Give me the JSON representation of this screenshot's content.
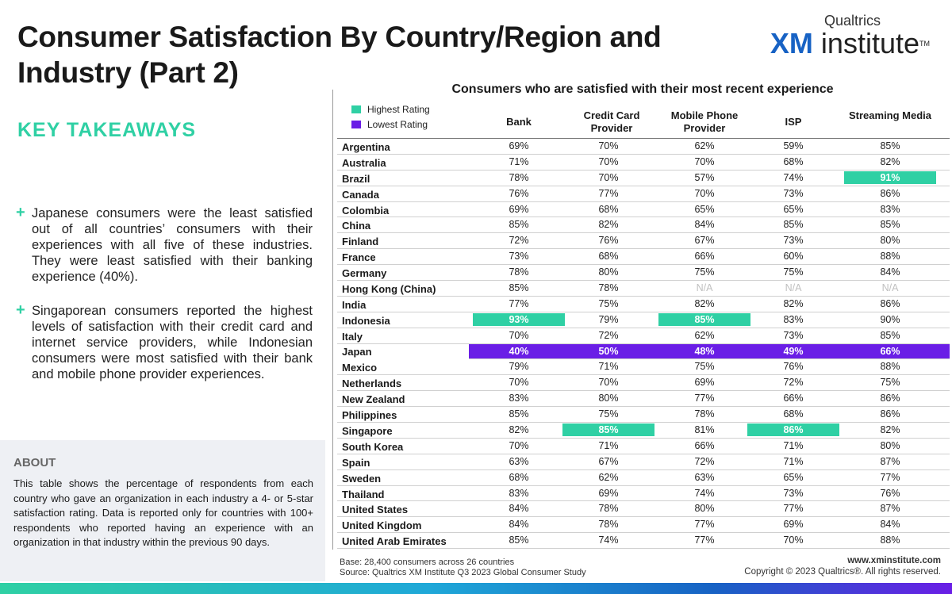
{
  "title": "Consumer Satisfaction By Country/Region and Industry (Part 2)",
  "brand": {
    "top": "Qualtrics",
    "xm": "XM",
    "rest": "institute",
    "tm": "TM"
  },
  "key_takeaways": {
    "heading": "KEY TAKEAWAYS",
    "bullets": [
      "Japanese consumers were the least satisfied out of all countries’ consumers with their experiences with all five of these industries. They were least satisfied with their banking experience (40%).",
      "Singaporean consumers reported the highest levels of satisfaction with their credit card and internet service providers, while Indonesian consumers were most satisfied with their bank and mobile phone provider experiences."
    ]
  },
  "about": {
    "heading": "ABOUT",
    "text": "This table shows the percentage of respondents from each country who gave an organization in each industry a 4- or 5-star satisfaction rating. Data is reported only for countries with 100+ respondents who reported having an experience with an organization in that industry within the previous 90 days."
  },
  "table": {
    "title": "Consumers who are satisfied with their most recent experience",
    "legend": {
      "high": "Highest Rating",
      "low": "Lowest Rating"
    },
    "columns": [
      "Bank",
      "Credit Card Provider",
      "Mobile Phone Provider",
      "ISP",
      "Streaming Media"
    ],
    "rows": [
      {
        "country": "Argentina",
        "values": [
          "69%",
          "70%",
          "62%",
          "59%",
          "85%"
        ]
      },
      {
        "country": "Australia",
        "values": [
          "71%",
          "70%",
          "70%",
          "68%",
          "82%"
        ]
      },
      {
        "country": "Brazil",
        "values": [
          "78%",
          "70%",
          "57%",
          "74%",
          "91%"
        ]
      },
      {
        "country": "Canada",
        "values": [
          "76%",
          "77%",
          "70%",
          "73%",
          "86%"
        ]
      },
      {
        "country": "Colombia",
        "values": [
          "69%",
          "68%",
          "65%",
          "65%",
          "83%"
        ]
      },
      {
        "country": "China",
        "values": [
          "85%",
          "82%",
          "84%",
          "85%",
          "85%"
        ]
      },
      {
        "country": "Finland",
        "values": [
          "72%",
          "76%",
          "67%",
          "73%",
          "80%"
        ]
      },
      {
        "country": "France",
        "values": [
          "73%",
          "68%",
          "66%",
          "60%",
          "88%"
        ]
      },
      {
        "country": "Germany",
        "values": [
          "78%",
          "80%",
          "75%",
          "75%",
          "84%"
        ]
      },
      {
        "country": "Hong Kong (China)",
        "values": [
          "85%",
          "78%",
          "N/A",
          "N/A",
          "N/A"
        ]
      },
      {
        "country": "India",
        "values": [
          "77%",
          "75%",
          "82%",
          "82%",
          "86%"
        ]
      },
      {
        "country": "Indonesia",
        "values": [
          "93%",
          "79%",
          "85%",
          "83%",
          "90%"
        ]
      },
      {
        "country": "Italy",
        "values": [
          "70%",
          "72%",
          "62%",
          "73%",
          "85%"
        ]
      },
      {
        "country": "Japan",
        "values": [
          "40%",
          "50%",
          "48%",
          "49%",
          "66%"
        ]
      },
      {
        "country": "Mexico",
        "values": [
          "79%",
          "71%",
          "75%",
          "76%",
          "88%"
        ]
      },
      {
        "country": "Netherlands",
        "values": [
          "70%",
          "70%",
          "69%",
          "72%",
          "75%"
        ]
      },
      {
        "country": "New Zealand",
        "values": [
          "83%",
          "80%",
          "77%",
          "66%",
          "86%"
        ]
      },
      {
        "country": "Philippines",
        "values": [
          "85%",
          "75%",
          "78%",
          "68%",
          "86%"
        ]
      },
      {
        "country": "Singapore",
        "values": [
          "82%",
          "85%",
          "81%",
          "86%",
          "82%"
        ]
      },
      {
        "country": "South Korea",
        "values": [
          "70%",
          "71%",
          "66%",
          "71%",
          "80%"
        ]
      },
      {
        "country": "Spain",
        "values": [
          "63%",
          "67%",
          "72%",
          "71%",
          "87%"
        ]
      },
      {
        "country": "Sweden",
        "values": [
          "68%",
          "62%",
          "63%",
          "65%",
          "77%"
        ]
      },
      {
        "country": "Thailand",
        "values": [
          "83%",
          "69%",
          "74%",
          "73%",
          "76%"
        ]
      },
      {
        "country": "United States",
        "values": [
          "84%",
          "78%",
          "80%",
          "77%",
          "87%"
        ]
      },
      {
        "country": "United Kingdom",
        "values": [
          "84%",
          "78%",
          "77%",
          "69%",
          "84%"
        ]
      },
      {
        "country": "United Arab Emirates",
        "values": [
          "85%",
          "74%",
          "77%",
          "70%",
          "88%"
        ]
      }
    ],
    "highlights": {
      "high": [
        [
          2,
          4
        ],
        [
          11,
          0
        ],
        [
          11,
          2
        ],
        [
          18,
          1
        ],
        [
          18,
          3
        ]
      ],
      "low_row": 13
    }
  },
  "footer": {
    "base": "Base: 28,400 consumers across 26 countries",
    "source": "Source: Qualtrics XM Institute Q3 2023 Global Consumer Study",
    "url": "www.xminstitute.com",
    "copyright": "Copyright © 2023 Qualtrics®. All rights reserved."
  },
  "colors": {
    "accent": "#2fd0a4",
    "highest": "#2fd0a4",
    "lowest": "#6a1ee6",
    "brand_blue": "#1762c4"
  }
}
